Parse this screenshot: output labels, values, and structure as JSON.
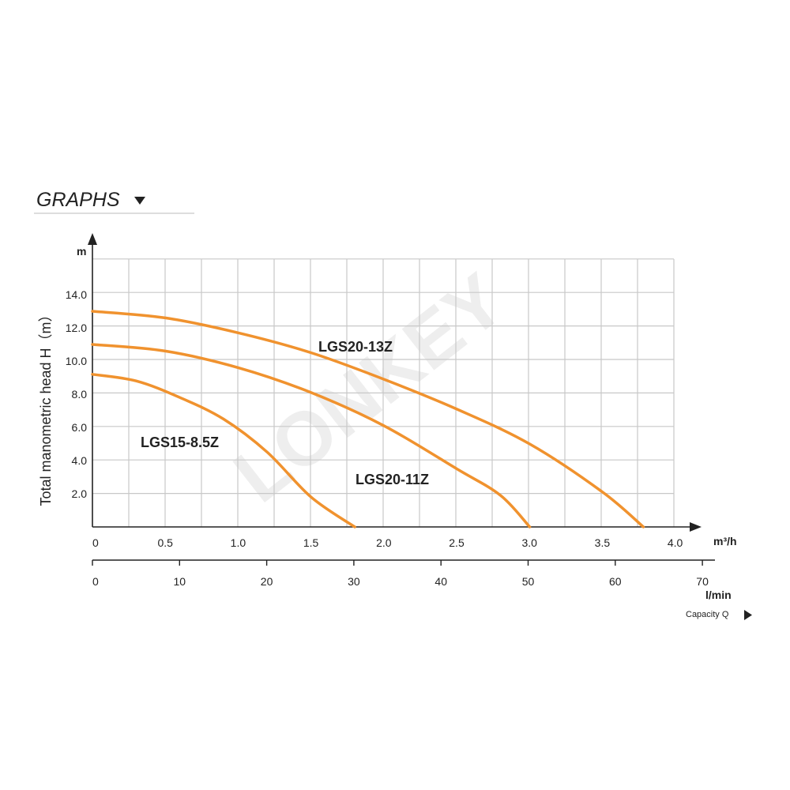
{
  "header": {
    "title": "GRAPHS"
  },
  "watermark": "LONKEY",
  "colors": {
    "curve": "#f0922e",
    "grid": "#c8c8c8",
    "axis": "#222222"
  },
  "chart_data": {
    "type": "line",
    "ylabel": "Total manometric head H（m）",
    "y_unit": "m",
    "x_unit_primary": "m³/h",
    "x_unit_secondary": "l/min",
    "capacity_label": "Capacity Q",
    "xlim": [
      0,
      4.0
    ],
    "ylim": [
      0,
      15
    ],
    "x_ticks": [
      "0",
      "0.5",
      "1.0",
      "1.5",
      "2.0",
      "2.5",
      "3.0",
      "3.5",
      "4.0"
    ],
    "x_ticks_secondary": [
      "0",
      "10",
      "20",
      "30",
      "40",
      "50",
      "60",
      "70"
    ],
    "y_ticks": [
      "2.0",
      "4.0",
      "6.0",
      "8.0",
      "10.0",
      "12.0",
      "14.0"
    ],
    "grid": true,
    "series": [
      {
        "name": "LGS20-13Z",
        "x": [
          0,
          0.5,
          1.0,
          1.5,
          2.0,
          2.5,
          3.0,
          3.5,
          3.78
        ],
        "y": [
          13.0,
          12.6,
          11.7,
          10.5,
          8.9,
          7.1,
          5.0,
          2.1,
          0
        ]
      },
      {
        "name": "LGS20-11Z",
        "x": [
          0,
          0.5,
          1.0,
          1.5,
          2.0,
          2.5,
          2.8,
          3.0
        ],
        "y": [
          11.0,
          10.6,
          9.6,
          8.1,
          6.1,
          3.5,
          1.9,
          0
        ]
      },
      {
        "name": "LGS15-8.5Z",
        "x": [
          0,
          0.3,
          0.6,
          0.9,
          1.2,
          1.5,
          1.8
        ],
        "y": [
          9.2,
          8.8,
          7.8,
          6.5,
          4.5,
          1.8,
          0
        ]
      }
    ]
  }
}
